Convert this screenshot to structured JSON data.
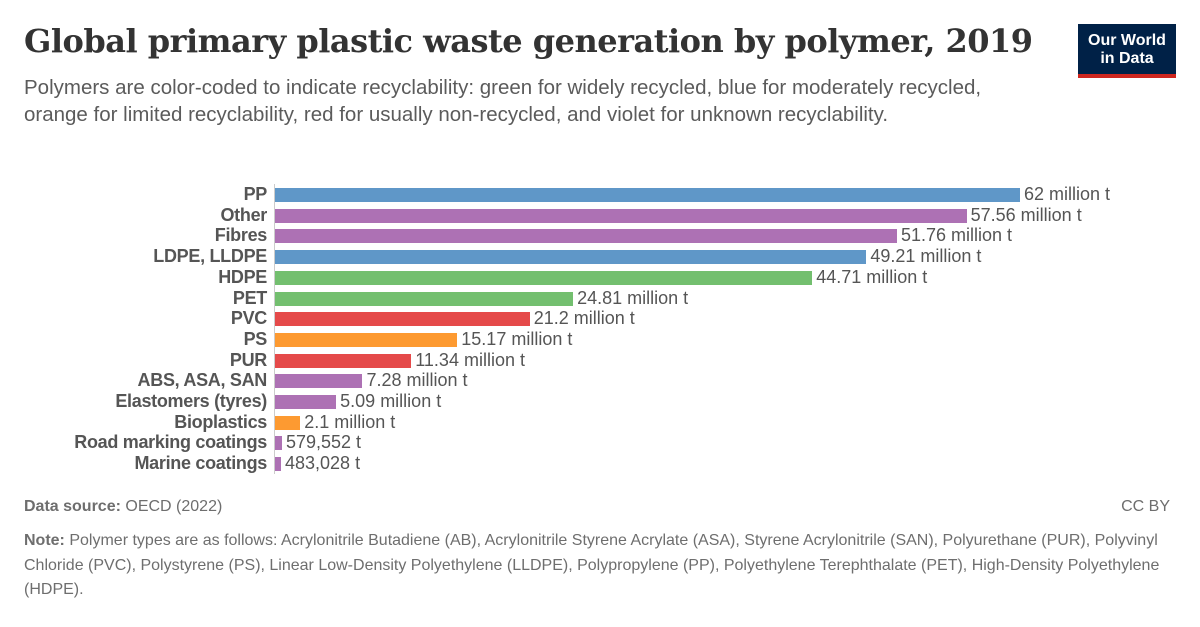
{
  "header": {
    "title": "Global primary plastic waste generation by polymer, 2019",
    "subtitle": "Polymers are color-coded to indicate recyclability: green for widely recycled, blue for moderately recycled, orange for limited recyclability, red for usually non-recycled, and violet for unknown recyclability.",
    "logo_line1": "Our World",
    "logo_line2": "in Data"
  },
  "colors": {
    "widely_recycled": "#73bf6f",
    "moderately_recycled": "#5f97c8",
    "limited_recyclability": "#fd9a31",
    "usually_non_recycled": "#e54a4a",
    "unknown_recyclability": "#ad71b4",
    "logo_bg": "#002147",
    "logo_accent": "#ce261e"
  },
  "chart_data": {
    "type": "bar",
    "orientation": "horizontal",
    "title": "Global primary plastic waste generation by polymer, 2019",
    "subtitle": "Polymers are color-coded to indicate recyclability: green for widely recycled, blue for moderately recycled, orange for limited recyclability, red for usually non-recycled, and violet for unknown recyclability.",
    "xlabel": "",
    "ylabel": "",
    "unit": "tonnes",
    "grid": false,
    "categories": [
      "PP",
      "Other",
      "Fibres",
      "LDPE, LLDPE",
      "HDPE",
      "PET",
      "PVC",
      "PS",
      "PUR",
      "ABS, ASA, SAN",
      "Elastomers (tyres)",
      "Bioplastics",
      "Road marking coatings",
      "Marine coatings"
    ],
    "values": [
      62000000,
      57560000,
      51760000,
      49210000,
      44710000,
      24810000,
      21200000,
      15170000,
      11340000,
      7280000,
      5090000,
      2100000,
      579552,
      483028
    ],
    "value_labels": [
      "62 million t",
      "57.56 million t",
      "51.76 million t",
      "49.21 million t",
      "44.71 million t",
      "24.81 million t",
      "21.2 million t",
      "15.17 million t",
      "11.34 million t",
      "7.28 million t",
      "5.09 million t",
      "2.1 million t",
      "579,552 t",
      "483,028 t"
    ],
    "bar_colors": [
      "#5f97c8",
      "#ad71b4",
      "#ad71b4",
      "#5f97c8",
      "#73bf6f",
      "#73bf6f",
      "#e54a4a",
      "#fd9a31",
      "#e54a4a",
      "#ad71b4",
      "#ad71b4",
      "#fd9a31",
      "#ad71b4",
      "#ad71b4"
    ],
    "recyclability": [
      "moderate",
      "unknown",
      "unknown",
      "moderate",
      "widely",
      "widely",
      "non-recycled",
      "limited",
      "non-recycled",
      "unknown",
      "unknown",
      "limited",
      "unknown",
      "unknown"
    ],
    "xlim": [
      0,
      62000000
    ]
  },
  "footer": {
    "source_label": "Data source:",
    "source_value": "OECD (2022)",
    "license": "CC BY",
    "note_label": "Note:",
    "note_text": "Polymer types are as follows: Acrylonitrile Butadiene (AB), Acrylonitrile Styrene Acrylate (ASA), Styrene Acrylonitrile (SAN), Polyurethane (PUR), Polyvinyl Chloride (PVC), Polystyrene (PS), Linear Low-Density Polyethylene (LLDPE), Polypropylene (PP), Polyethylene Terephthalate (PET), High-Density Polyethylene (HDPE)."
  }
}
